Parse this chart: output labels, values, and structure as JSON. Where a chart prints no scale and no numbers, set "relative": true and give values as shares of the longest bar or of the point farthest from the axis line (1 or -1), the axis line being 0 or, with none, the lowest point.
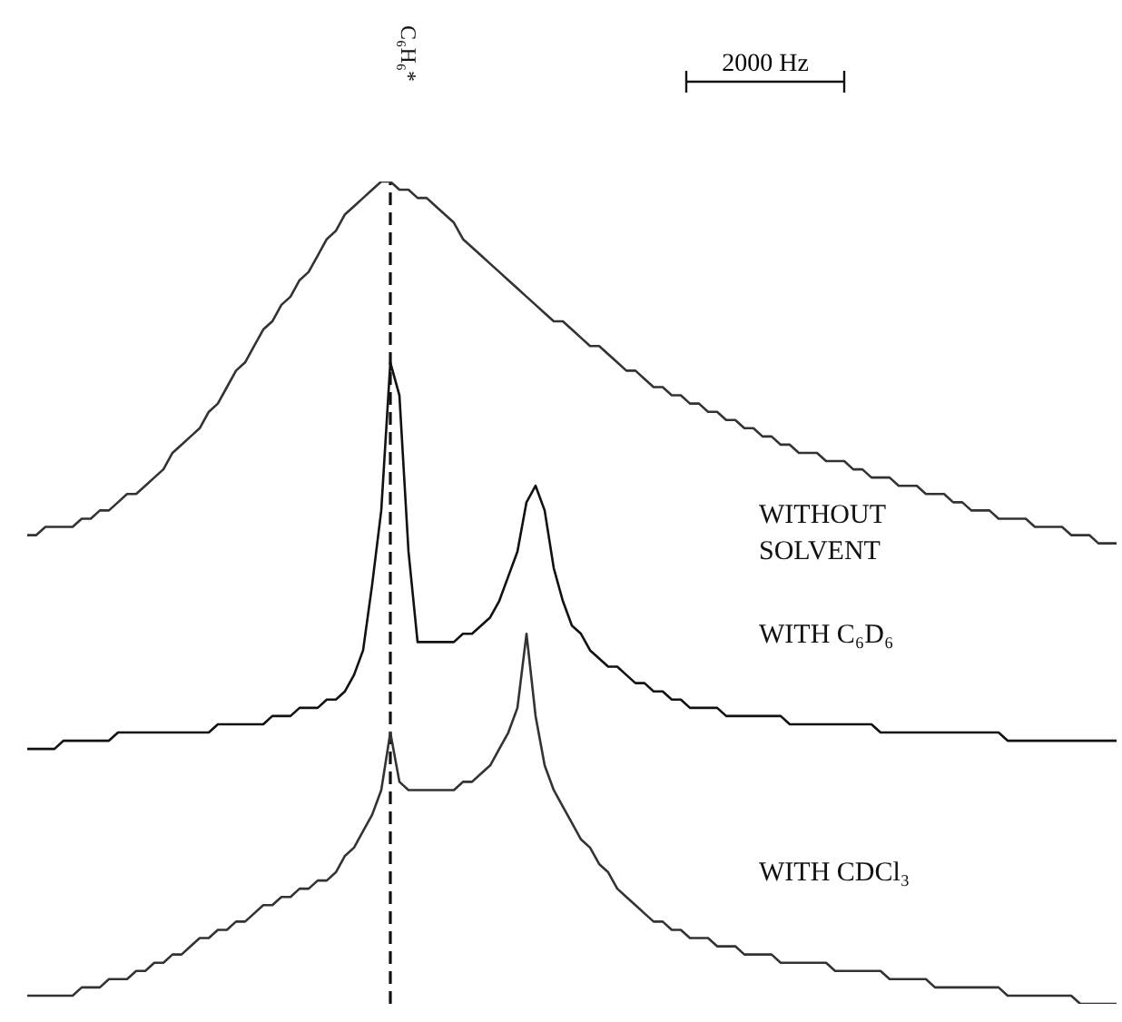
{
  "chart_data": {
    "type": "line",
    "relative": true,
    "tick_labels": false,
    "marker": "none",
    "line_style": "solid",
    "categories": [
      null,
      null,
      null,
      null,
      null,
      null,
      null,
      null,
      null,
      null,
      null,
      null,
      null,
      null,
      null,
      null,
      null,
      null,
      null,
      null,
      null,
      null,
      null,
      null,
      null,
      null,
      null,
      null,
      null,
      null,
      null,
      null,
      null,
      null,
      null,
      null,
      null,
      null,
      null,
      null,
      null,
      null,
      null,
      null,
      null,
      null,
      null,
      null,
      null,
      null,
      null,
      null,
      null,
      null,
      null,
      null,
      null,
      null,
      null,
      null,
      null,
      null,
      null,
      null,
      null,
      null,
      null,
      null,
      null,
      null,
      null,
      null,
      null,
      null,
      null,
      null,
      null,
      null,
      null,
      null,
      null,
      null,
      null,
      null,
      null,
      null,
      null,
      null,
      null,
      null,
      null,
      null,
      null,
      null,
      null,
      null,
      null,
      null,
      null,
      null,
      null,
      null,
      null,
      null,
      null,
      null,
      null,
      null,
      null,
      null,
      null,
      null,
      null,
      null,
      null,
      null,
      null,
      null,
      null,
      null,
      null
    ],
    "ref_lines": [
      {
        "axis": "x",
        "label": "C₆H₆*",
        "line_style": "dashed",
        "color": "#111111"
      }
    ],
    "annotations": [
      "2000 Hz"
    ],
    "series": [
      {
        "name": "WITHOUT SOLVENT",
        "color": "#333333",
        "values": [
          0.57,
          0.57,
          0.58,
          0.58,
          0.58,
          0.58,
          0.59,
          0.59,
          0.6,
          0.6,
          0.61,
          0.62,
          0.62,
          0.63,
          0.64,
          0.65,
          0.67,
          0.68,
          0.69,
          0.7,
          0.72,
          0.73,
          0.75,
          0.77,
          0.78,
          0.8,
          0.82,
          0.83,
          0.85,
          0.86,
          0.88,
          0.89,
          0.91,
          0.93,
          0.94,
          0.96,
          0.97,
          0.98,
          0.99,
          1.0,
          1.0,
          0.99,
          0.99,
          0.98,
          0.98,
          0.97,
          0.96,
          0.95,
          0.93,
          0.92,
          0.91,
          0.9,
          0.89,
          0.88,
          0.87,
          0.86,
          0.85,
          0.84,
          0.83,
          0.83,
          0.82,
          0.81,
          0.8,
          0.8,
          0.79,
          0.78,
          0.77,
          0.77,
          0.76,
          0.75,
          0.75,
          0.74,
          0.74,
          0.73,
          0.73,
          0.72,
          0.72,
          0.71,
          0.71,
          0.7,
          0.7,
          0.69,
          0.69,
          0.68,
          0.68,
          0.67,
          0.67,
          0.67,
          0.66,
          0.66,
          0.66,
          0.65,
          0.65,
          0.64,
          0.64,
          0.64,
          0.63,
          0.63,
          0.63,
          0.62,
          0.62,
          0.62,
          0.61,
          0.61,
          0.6,
          0.6,
          0.6,
          0.59,
          0.59,
          0.59,
          0.59,
          0.58,
          0.58,
          0.58,
          0.58,
          0.57,
          0.57,
          0.57,
          0.56,
          0.56,
          0.56
        ]
      },
      {
        "name": "WITH C₆D₆",
        "color": "#111111",
        "values": [
          0.31,
          0.31,
          0.31,
          0.31,
          0.32,
          0.32,
          0.32,
          0.32,
          0.32,
          0.32,
          0.33,
          0.33,
          0.33,
          0.33,
          0.33,
          0.33,
          0.33,
          0.33,
          0.33,
          0.33,
          0.33,
          0.34,
          0.34,
          0.34,
          0.34,
          0.34,
          0.34,
          0.35,
          0.35,
          0.35,
          0.36,
          0.36,
          0.36,
          0.37,
          0.37,
          0.38,
          0.4,
          0.43,
          0.51,
          0.6,
          0.78,
          0.74,
          0.55,
          0.44,
          0.44,
          0.44,
          0.44,
          0.44,
          0.45,
          0.45,
          0.46,
          0.47,
          0.49,
          0.52,
          0.55,
          0.61,
          0.63,
          0.6,
          0.53,
          0.49,
          0.46,
          0.45,
          0.43,
          0.42,
          0.41,
          0.41,
          0.4,
          0.39,
          0.39,
          0.38,
          0.38,
          0.37,
          0.37,
          0.36,
          0.36,
          0.36,
          0.36,
          0.35,
          0.35,
          0.35,
          0.35,
          0.35,
          0.35,
          0.35,
          0.34,
          0.34,
          0.34,
          0.34,
          0.34,
          0.34,
          0.34,
          0.34,
          0.34,
          0.34,
          0.33,
          0.33,
          0.33,
          0.33,
          0.33,
          0.33,
          0.33,
          0.33,
          0.33,
          0.33,
          0.33,
          0.33,
          0.33,
          0.33,
          0.32,
          0.32,
          0.32,
          0.32,
          0.32,
          0.32,
          0.32,
          0.32,
          0.32,
          0.32,
          0.32,
          0.32,
          0.32
        ]
      },
      {
        "name": "WITH CDCl₃",
        "color": "#333333",
        "values": [
          0.01,
          0.01,
          0.01,
          0.01,
          0.01,
          0.01,
          0.02,
          0.02,
          0.02,
          0.03,
          0.03,
          0.03,
          0.04,
          0.04,
          0.05,
          0.05,
          0.06,
          0.06,
          0.07,
          0.08,
          0.08,
          0.09,
          0.09,
          0.1,
          0.1,
          0.11,
          0.12,
          0.12,
          0.13,
          0.13,
          0.14,
          0.14,
          0.15,
          0.15,
          0.16,
          0.18,
          0.19,
          0.21,
          0.23,
          0.26,
          0.33,
          0.27,
          0.26,
          0.26,
          0.26,
          0.26,
          0.26,
          0.26,
          0.27,
          0.27,
          0.28,
          0.29,
          0.31,
          0.33,
          0.36,
          0.45,
          0.35,
          0.29,
          0.26,
          0.24,
          0.22,
          0.2,
          0.19,
          0.17,
          0.16,
          0.14,
          0.13,
          0.12,
          0.11,
          0.1,
          0.1,
          0.09,
          0.09,
          0.08,
          0.08,
          0.08,
          0.07,
          0.07,
          0.07,
          0.06,
          0.06,
          0.06,
          0.06,
          0.05,
          0.05,
          0.05,
          0.05,
          0.05,
          0.05,
          0.04,
          0.04,
          0.04,
          0.04,
          0.04,
          0.04,
          0.03,
          0.03,
          0.03,
          0.03,
          0.03,
          0.02,
          0.02,
          0.02,
          0.02,
          0.02,
          0.02,
          0.02,
          0.02,
          0.01,
          0.01,
          0.01,
          0.01,
          0.01,
          0.01,
          0.01,
          0.01,
          0.0,
          0.0,
          0.0,
          0.0,
          0.0
        ]
      }
    ]
  }
}
